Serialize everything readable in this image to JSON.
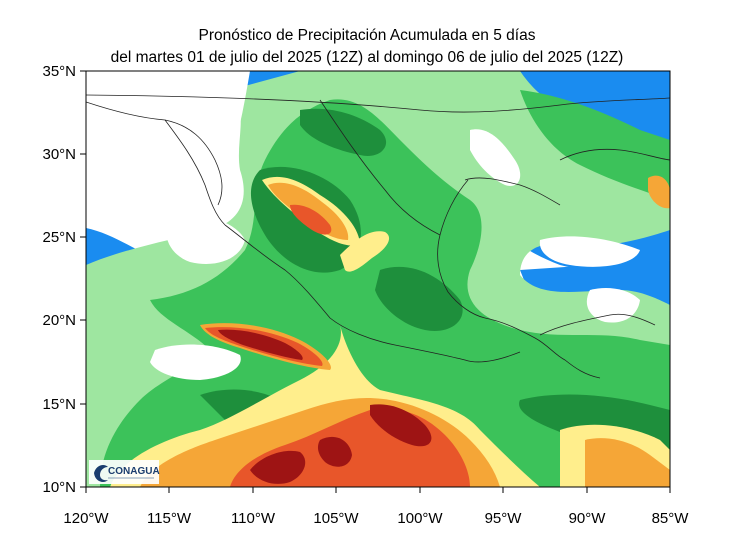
{
  "title_line1": "Pronóstico de Precipitación Acumulada en 5 días",
  "title_line2": "del martes 01 de julio del 2025 (12Z) al domingo  06 de julio del 2025 (12Z)",
  "lat_labels": [
    "35°N",
    "30°N",
    "25°N",
    "20°N",
    "15°N",
    "10°N"
  ],
  "lon_labels": [
    "120°W",
    "115°W",
    "110°W",
    "105°W",
    "100°W",
    "95°W",
    "90°W",
    "85°W"
  ],
  "logo_text": "CONAGUA",
  "colors": {
    "ocean_blue": "#1a8cf0",
    "light_blue": "#c6ecff",
    "light_green": "#9ee6a0",
    "green": "#3cc25a",
    "dark_green": "#1e8f3c",
    "yellow": "#ffee8c",
    "orange": "#f5a637",
    "red_orange": "#e8562a",
    "dark_red": "#9e1414"
  }
}
